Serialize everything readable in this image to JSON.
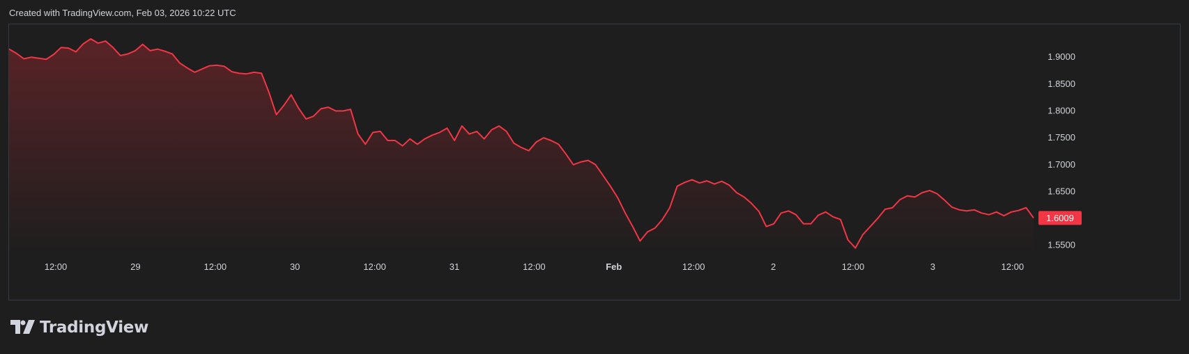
{
  "header": {
    "attribution": "Created with TradingView.com, Feb 03, 2026 10:22 UTC"
  },
  "brand": {
    "logo_text": "TradingView"
  },
  "colors": {
    "background": "#1e1e1e",
    "line": "#f23645",
    "fill_top": "#5a2326",
    "axis_text": "#d1d4dc",
    "border": "#363a45"
  },
  "chart_data": {
    "type": "area",
    "title": "",
    "xlabel": "",
    "ylabel": "",
    "ylim": [
      1.5341,
      1.9611
    ],
    "grid": false,
    "last_price_label": "1.6009",
    "y_ticks": [
      {
        "value": 1.9,
        "label": "1.9000"
      },
      {
        "value": 1.85,
        "label": "1.8500"
      },
      {
        "value": 1.8,
        "label": "1.8000"
      },
      {
        "value": 1.75,
        "label": "1.7500"
      },
      {
        "value": 1.7,
        "label": "1.7000"
      },
      {
        "value": 1.65,
        "label": "1.6500"
      },
      {
        "value": 1.6,
        "label": "1.6000"
      },
      {
        "value": 1.55,
        "label": "1.5500"
      }
    ],
    "x_ticks": [
      {
        "label": "12:00",
        "bold": false
      },
      {
        "label": "29",
        "bold": false
      },
      {
        "label": "12:00",
        "bold": false
      },
      {
        "label": "30",
        "bold": false
      },
      {
        "label": "12:00",
        "bold": false
      },
      {
        "label": "31",
        "bold": false
      },
      {
        "label": "12:00",
        "bold": false
      },
      {
        "label": "Feb",
        "bold": true
      },
      {
        "label": "12:00",
        "bold": false
      },
      {
        "label": "2",
        "bold": false
      },
      {
        "label": "12:00",
        "bold": false
      },
      {
        "label": "3",
        "bold": false
      },
      {
        "label": "12:00",
        "bold": false
      }
    ],
    "values": [
      1.915,
      1.907,
      1.897,
      1.9,
      1.898,
      1.896,
      1.905,
      1.918,
      1.917,
      1.91,
      1.925,
      1.934,
      1.926,
      1.93,
      1.918,
      1.903,
      1.906,
      1.912,
      1.924,
      1.912,
      1.915,
      1.911,
      1.906,
      1.889,
      1.88,
      1.872,
      1.878,
      1.884,
      1.885,
      1.883,
      1.873,
      1.87,
      1.869,
      1.872,
      1.87,
      1.835,
      1.793,
      1.81,
      1.83,
      1.805,
      1.785,
      1.79,
      1.804,
      1.807,
      1.8,
      1.8,
      1.803,
      1.757,
      1.738,
      1.76,
      1.762,
      1.745,
      1.745,
      1.735,
      1.748,
      1.738,
      1.748,
      1.755,
      1.76,
      1.768,
      1.745,
      1.772,
      1.757,
      1.762,
      1.748,
      1.765,
      1.772,
      1.762,
      1.74,
      1.732,
      1.726,
      1.742,
      1.75,
      1.745,
      1.738,
      1.72,
      1.7,
      1.705,
      1.708,
      1.7,
      1.68,
      1.66,
      1.638,
      1.61,
      1.585,
      1.558,
      1.575,
      1.582,
      1.598,
      1.62,
      1.66,
      1.667,
      1.672,
      1.666,
      1.67,
      1.664,
      1.669,
      1.662,
      1.648,
      1.64,
      1.628,
      1.613,
      1.585,
      1.59,
      1.61,
      1.614,
      1.607,
      1.59,
      1.59,
      1.606,
      1.612,
      1.603,
      1.598,
      1.56,
      1.545,
      1.57,
      1.585,
      1.6,
      1.617,
      1.62,
      1.635,
      1.642,
      1.64,
      1.648,
      1.652,
      1.646,
      1.634,
      1.621,
      1.616,
      1.614,
      1.616,
      1.61,
      1.607,
      1.612,
      1.605,
      1.612,
      1.615,
      1.62,
      1.6009
    ]
  }
}
